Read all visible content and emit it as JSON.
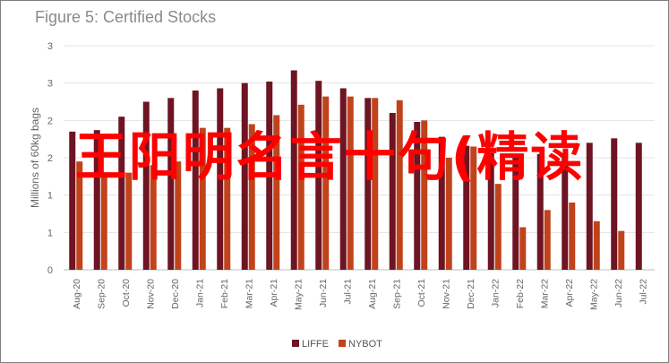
{
  "title": "Figure 5: Certified Stocks",
  "overlay_text": "王阳明名言十句(精读",
  "chart_data": {
    "type": "bar",
    "ylabel": "Millions of 60kg bags",
    "ylim": [
      0,
      3
    ],
    "y_tick_labels": [
      "0",
      "1",
      "1",
      "2",
      "2",
      "3",
      "3"
    ],
    "categories": [
      "Aug-20",
      "Sep-20",
      "Oct-20",
      "Nov-20",
      "Dec-20",
      "Jan-21",
      "Feb-21",
      "Mar-21",
      "Apr-21",
      "May-21",
      "Jun-21",
      "Jul-21",
      "Aug-21",
      "Sep-21",
      "Oct-21",
      "Nov-21",
      "Dec-21",
      "Jan-22",
      "Feb-22",
      "Mar-22",
      "Apr-22",
      "May-22",
      "Jun-22",
      "Jul-22"
    ],
    "series": [
      {
        "name": "LIFFE",
        "color": "#6e1423",
        "values": [
          1.85,
          1.87,
          2.05,
          2.25,
          2.3,
          2.4,
          2.43,
          2.5,
          2.52,
          2.67,
          2.53,
          2.43,
          2.3,
          2.1,
          1.98,
          1.78,
          1.66,
          1.56,
          1.53,
          1.55,
          1.55,
          1.7,
          1.76,
          1.7
        ]
      },
      {
        "name": "NYBOT",
        "color": "#c0431b",
        "values": [
          1.45,
          1.3,
          1.3,
          1.4,
          1.45,
          1.9,
          1.9,
          1.95,
          2.07,
          2.21,
          2.32,
          2.32,
          2.3,
          2.27,
          2.0,
          1.5,
          1.65,
          1.15,
          0.57,
          0.8,
          0.9,
          0.65,
          0.52,
          0.0
        ]
      }
    ],
    "grid": true,
    "legend": "bottom-center"
  }
}
